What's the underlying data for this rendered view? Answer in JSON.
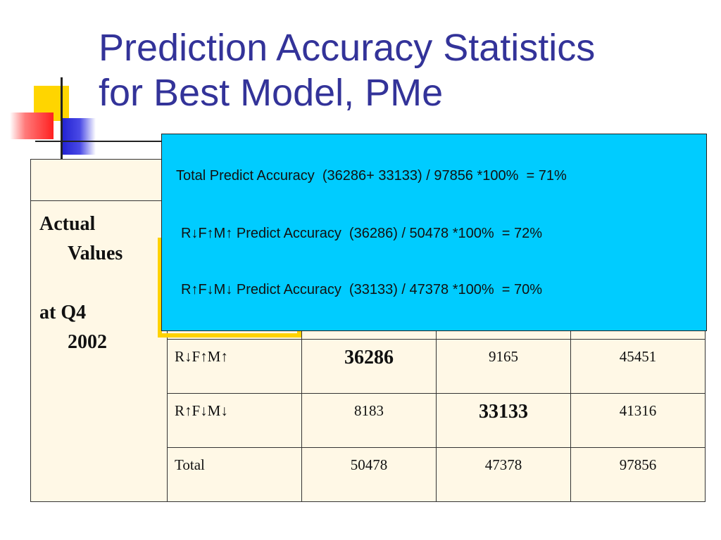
{
  "title": {
    "line1": "Prediction Accuracy Statistics",
    "line2": "for Best Model, PMe"
  },
  "side_label": {
    "line1": "Actual",
    "line2": "Values",
    "line3": "at Q4",
    "line4": "2002"
  },
  "table": {
    "rows": [
      {
        "label": "R↓F↑M↑",
        "v1": "36286",
        "v2": "9165",
        "v3": "45451"
      },
      {
        "label": "R↑F↓M↓",
        "v1": "8183",
        "v2": "33133",
        "v3": "41316"
      },
      {
        "label": "Total",
        "v1": "50478",
        "v2": "47378",
        "v3": "97856"
      }
    ]
  },
  "overlay": {
    "line1": "Total Predict Accuracy  (36286+ 33133) / 97856 *100%  = 71%",
    "line2": "R↓F↑M↑ Predict Accuracy  (36286) / 50478 *100%  = 72%",
    "line3": "R↑F↓M↓ Predict Accuracy  (33133) / 47378 *100%  = 70%"
  },
  "colors": {
    "title": "#333399",
    "overlay_bg": "#00ccff",
    "highlight_border": "#ffd200"
  }
}
